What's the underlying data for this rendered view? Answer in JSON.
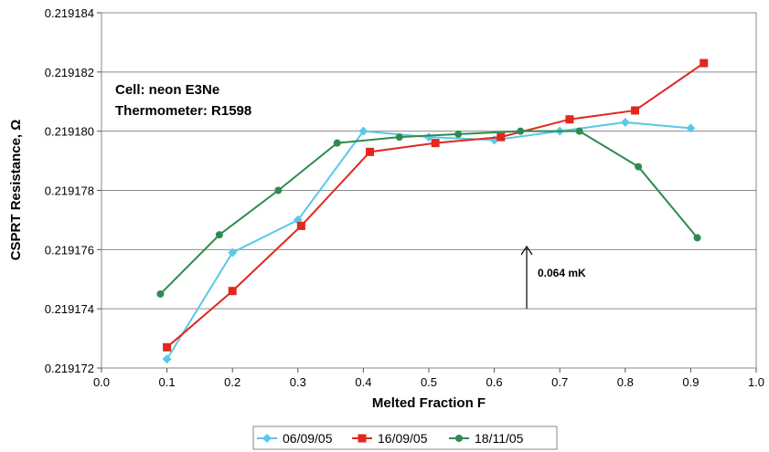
{
  "chart_data": {
    "type": "line",
    "title": "",
    "xlabel": "Melted Fraction F",
    "ylabel": "CSPRT Resistance, Ω",
    "xlim": [
      0.0,
      1.0
    ],
    "ylim": [
      0.219172,
      0.219184
    ],
    "x_ticks": [
      "0.0",
      "0.1",
      "0.2",
      "0.3",
      "0.4",
      "0.5",
      "0.6",
      "0.7",
      "0.8",
      "0.9",
      "1.0"
    ],
    "y_ticks": [
      "0.219172",
      "0.219174",
      "0.219176",
      "0.219178",
      "0.219180",
      "0.219182",
      "0.219184"
    ],
    "grid": "horizontal",
    "legend_position": "bottom",
    "annotations": {
      "cell": "Cell: neon E3Ne",
      "thermometer": "Thermometer: R1598",
      "arrow_label": "0.064 mK"
    },
    "series": [
      {
        "name": "06/09/05",
        "color": "#5bc8e8",
        "marker": "diamond",
        "x": [
          0.1,
          0.2,
          0.3,
          0.4,
          0.5,
          0.6,
          0.7,
          0.8,
          0.9
        ],
        "y": [
          0.2191723,
          0.2191759,
          0.219177,
          0.21918,
          0.2191798,
          0.2191797,
          0.21918,
          0.2191803,
          0.2191801
        ]
      },
      {
        "name": "16/09/05",
        "color": "#e0281e",
        "marker": "square",
        "x": [
          0.1,
          0.2,
          0.305,
          0.41,
          0.51,
          0.61,
          0.715,
          0.815,
          0.92
        ],
        "y": [
          0.2191727,
          0.2191746,
          0.2191768,
          0.2191793,
          0.2191796,
          0.2191798,
          0.2191804,
          0.2191807,
          0.2191823
        ]
      },
      {
        "name": "18/11/05",
        "color": "#2e8b4f",
        "marker": "circle",
        "x": [
          0.09,
          0.18,
          0.27,
          0.36,
          0.455,
          0.545,
          0.64,
          0.73,
          0.82,
          0.91
        ],
        "y": [
          0.2191745,
          0.2191765,
          0.219178,
          0.2191796,
          0.2191798,
          0.2191799,
          0.21918,
          0.21918,
          0.2191788,
          0.2191764
        ]
      }
    ]
  }
}
